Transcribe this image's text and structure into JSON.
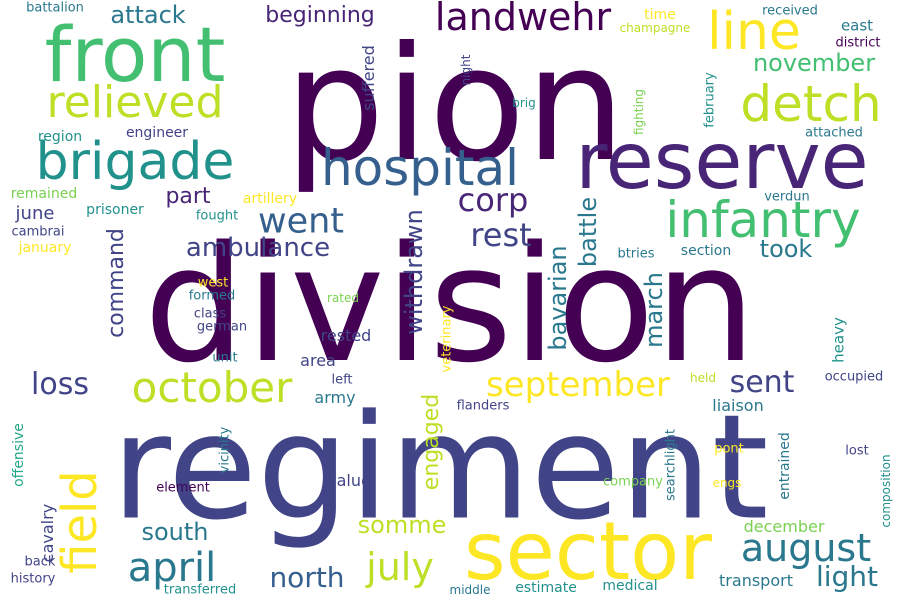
{
  "palette": {
    "dark_purple": "#440154",
    "purple": "#482576",
    "indigo": "#414487",
    "blue": "#355f8d",
    "steel_blue": "#2a788e",
    "teal": "#21918c",
    "green_teal": "#22a884",
    "green": "#43bf71",
    "light_green": "#7ad151",
    "yellow_green": "#bddf26",
    "yellow": "#fde725"
  },
  "words": [
    {
      "text": "division",
      "orientation": "horizontal",
      "color": "#440154"
    },
    {
      "text": "regiment",
      "orientation": "horizontal",
      "color": "#414487"
    },
    {
      "text": "pion",
      "orientation": "horizontal",
      "color": "#440154"
    },
    {
      "text": "reserve",
      "orientation": "horizontal",
      "color": "#482576"
    },
    {
      "text": "sector",
      "orientation": "horizontal",
      "color": "#fde725"
    },
    {
      "text": "front",
      "orientation": "horizontal",
      "color": "#43bf71"
    },
    {
      "text": "hospital",
      "orientation": "horizontal",
      "color": "#355f8d"
    },
    {
      "text": "brigade",
      "orientation": "horizontal",
      "color": "#21918c"
    },
    {
      "text": "relieved",
      "orientation": "horizontal",
      "color": "#bddf26"
    },
    {
      "text": "infantry",
      "orientation": "horizontal",
      "color": "#43bf71"
    },
    {
      "text": "detch",
      "orientation": "horizontal",
      "color": "#bddf26"
    },
    {
      "text": "line",
      "orientation": "horizontal",
      "color": "#fde725"
    },
    {
      "text": "field",
      "orientation": "vertical",
      "color": "#fde725"
    },
    {
      "text": "october",
      "orientation": "horizontal",
      "color": "#bddf26"
    },
    {
      "text": "landwehr",
      "orientation": "horizontal",
      "color": "#440154"
    },
    {
      "text": "april",
      "orientation": "horizontal",
      "color": "#2a788e"
    },
    {
      "text": "august",
      "orientation": "horizontal",
      "color": "#2a788e"
    },
    {
      "text": "september",
      "orientation": "horizontal",
      "color": "#fde725"
    },
    {
      "text": "went",
      "orientation": "horizontal",
      "color": "#355f8d"
    },
    {
      "text": "corp",
      "orientation": "horizontal",
      "color": "#482576"
    },
    {
      "text": "july",
      "orientation": "horizontal",
      "color": "#bddf26"
    },
    {
      "text": "rest",
      "orientation": "horizontal",
      "color": "#414487"
    },
    {
      "text": "sent",
      "orientation": "horizontal",
      "color": "#414487"
    },
    {
      "text": "loss",
      "orientation": "horizontal",
      "color": "#414487"
    },
    {
      "text": "north",
      "orientation": "horizontal",
      "color": "#355f8d"
    },
    {
      "text": "light",
      "orientation": "horizontal",
      "color": "#2a788e"
    },
    {
      "text": "ambulance",
      "orientation": "horizontal",
      "color": "#414487"
    },
    {
      "text": "attack",
      "orientation": "horizontal",
      "color": "#2a788e"
    },
    {
      "text": "beginning",
      "orientation": "horizontal",
      "color": "#482576"
    },
    {
      "text": "november",
      "orientation": "horizontal",
      "color": "#43bf71"
    },
    {
      "text": "somme",
      "orientation": "horizontal",
      "color": "#bddf26"
    },
    {
      "text": "south",
      "orientation": "horizontal",
      "color": "#2a788e"
    },
    {
      "text": "took",
      "orientation": "horizontal",
      "color": "#2a788e"
    },
    {
      "text": "part",
      "orientation": "horizontal",
      "color": "#482576"
    },
    {
      "text": "withdrawn",
      "orientation": "vertical",
      "color": "#414487"
    },
    {
      "text": "bavarian",
      "orientation": "vertical",
      "color": "#2a788e"
    },
    {
      "text": "battle",
      "orientation": "vertical",
      "color": "#2a788e"
    },
    {
      "text": "march",
      "orientation": "vertical",
      "color": "#2a788e"
    },
    {
      "text": "command",
      "orientation": "vertical",
      "color": "#414487"
    },
    {
      "text": "engaged",
      "orientation": "vertical",
      "color": "#bddf26"
    },
    {
      "text": "june",
      "orientation": "horizontal",
      "color": "#414487"
    },
    {
      "text": "suffered",
      "orientation": "vertical",
      "color": "#414487"
    },
    {
      "text": "cavalry",
      "orientation": "vertical",
      "color": "#414487"
    },
    {
      "text": "rested",
      "orientation": "horizontal",
      "color": "#414487"
    },
    {
      "text": "area",
      "orientation": "horizontal",
      "color": "#414487"
    },
    {
      "text": "army",
      "orientation": "horizontal",
      "color": "#2a788e"
    },
    {
      "text": "december",
      "orientation": "horizontal",
      "color": "#7ad151"
    },
    {
      "text": "transport",
      "orientation": "horizontal",
      "color": "#2a788e"
    },
    {
      "text": "liaison",
      "orientation": "horizontal",
      "color": "#2a788e"
    },
    {
      "text": "value",
      "orientation": "horizontal",
      "color": "#414487"
    },
    {
      "text": "region",
      "orientation": "horizontal",
      "color": "#21918c"
    },
    {
      "text": "engineer",
      "orientation": "horizontal",
      "color": "#414487"
    },
    {
      "text": "remained",
      "orientation": "horizontal",
      "color": "#7ad151"
    },
    {
      "text": "prisoner",
      "orientation": "horizontal",
      "color": "#21918c"
    },
    {
      "text": "artillery",
      "orientation": "horizontal",
      "color": "#fde725"
    },
    {
      "text": "fought",
      "orientation": "horizontal",
      "color": "#21918c"
    },
    {
      "text": "cambrai",
      "orientation": "horizontal",
      "color": "#414487"
    },
    {
      "text": "january",
      "orientation": "horizontal",
      "color": "#fde725"
    },
    {
      "text": "battalion",
      "orientation": "horizontal",
      "color": "#2a788e"
    },
    {
      "text": "received",
      "orientation": "horizontal",
      "color": "#2a788e"
    },
    {
      "text": "east",
      "orientation": "horizontal",
      "color": "#2a788e"
    },
    {
      "text": "district",
      "orientation": "horizontal",
      "color": "#440154"
    },
    {
      "text": "time",
      "orientation": "horizontal",
      "color": "#fde725"
    },
    {
      "text": "champagne",
      "orientation": "horizontal",
      "color": "#bddf26"
    },
    {
      "text": "night",
      "orientation": "vertical",
      "color": "#414487"
    },
    {
      "text": "brig",
      "orientation": "horizontal",
      "color": "#21918c"
    },
    {
      "text": "fighting",
      "orientation": "vertical",
      "color": "#7ad151"
    },
    {
      "text": "february",
      "orientation": "vertical",
      "color": "#21918c"
    },
    {
      "text": "attached",
      "orientation": "horizontal",
      "color": "#2a788e"
    },
    {
      "text": "verdun",
      "orientation": "horizontal",
      "color": "#2a788e"
    },
    {
      "text": "section",
      "orientation": "horizontal",
      "color": "#2a788e"
    },
    {
      "text": "btries",
      "orientation": "horizontal",
      "color": "#2a788e"
    },
    {
      "text": "west",
      "orientation": "horizontal",
      "color": "#fde725"
    },
    {
      "text": "formed",
      "orientation": "horizontal",
      "color": "#2a788e"
    },
    {
      "text": "class",
      "orientation": "horizontal",
      "color": "#414487"
    },
    {
      "text": "german",
      "orientation": "horizontal",
      "color": "#414487"
    },
    {
      "text": "rated",
      "orientation": "horizontal",
      "color": "#7ad151"
    },
    {
      "text": "unit",
      "orientation": "horizontal",
      "color": "#2a788e"
    },
    {
      "text": "veterinary",
      "orientation": "vertical",
      "color": "#fde725"
    },
    {
      "text": "heavy",
      "orientation": "vertical",
      "color": "#21918c"
    },
    {
      "text": "left",
      "orientation": "horizontal",
      "color": "#414487"
    },
    {
      "text": "held",
      "orientation": "horizontal",
      "color": "#bddf26"
    },
    {
      "text": "occupied",
      "orientation": "horizontal",
      "color": "#414487"
    },
    {
      "text": "flanders",
      "orientation": "horizontal",
      "color": "#414487"
    },
    {
      "text": "offensive",
      "orientation": "vertical",
      "color": "#22a884"
    },
    {
      "text": "vicinity",
      "orientation": "vertical",
      "color": "#2a788e"
    },
    {
      "text": "element",
      "orientation": "horizontal",
      "color": "#440154"
    },
    {
      "text": "searchlight",
      "orientation": "vertical",
      "color": "#2a788e"
    },
    {
      "text": "entrained",
      "orientation": "vertical",
      "color": "#2a788e"
    },
    {
      "text": "pont",
      "orientation": "horizontal",
      "color": "#fde725"
    },
    {
      "text": "lost",
      "orientation": "horizontal",
      "color": "#414487"
    },
    {
      "text": "composition",
      "orientation": "vertical",
      "color": "#21918c"
    },
    {
      "text": "company",
      "orientation": "horizontal",
      "color": "#7ad151"
    },
    {
      "text": "engs",
      "orientation": "horizontal",
      "color": "#fde725"
    },
    {
      "text": "back",
      "orientation": "horizontal",
      "color": "#414487"
    },
    {
      "text": "history",
      "orientation": "horizontal",
      "color": "#414487"
    },
    {
      "text": "transferred",
      "orientation": "horizontal",
      "color": "#21918c"
    },
    {
      "text": "middle",
      "orientation": "horizontal",
      "color": "#2a788e"
    },
    {
      "text": "estimate",
      "orientation": "horizontal",
      "color": "#21918c"
    },
    {
      "text": "medical",
      "orientation": "horizontal",
      "color": "#21918c"
    }
  ]
}
